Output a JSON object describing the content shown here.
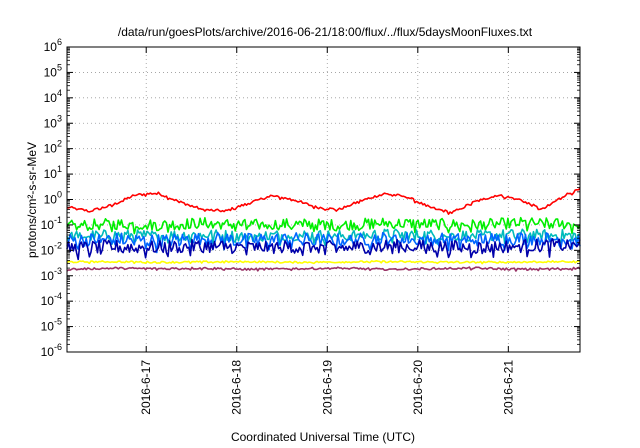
{
  "chart_data": {
    "type": "line",
    "title": "/data/run/goesPlots/archive/2016-06-21/18:00/flux/../flux/5daysMoonFluxes.txt",
    "xlabel": "Coordinated Universal Time (UTC)",
    "ylabel": "protons/cm²-s-sr-MeV",
    "y_scale": "log",
    "ylim": [
      1e-06,
      1000000.0
    ],
    "xlim": [
      "2016-06-16 03:00",
      "2016-06-21 19:00"
    ],
    "grid": true,
    "legend": "none",
    "y_ticks": [
      {
        "value": 1e-06,
        "base": "10",
        "exp": "-6"
      },
      {
        "value": 1e-05,
        "base": "10",
        "exp": "-5"
      },
      {
        "value": 0.0001,
        "base": "10",
        "exp": "-4"
      },
      {
        "value": 0.001,
        "base": "10",
        "exp": "-3"
      },
      {
        "value": 0.01,
        "base": "10",
        "exp": "-2"
      },
      {
        "value": 0.1,
        "base": "10",
        "exp": "-1"
      },
      {
        "value": 1,
        "base": "10",
        "exp": "0"
      },
      {
        "value": 10.0,
        "base": "10",
        "exp": "1"
      },
      {
        "value": 100.0,
        "base": "10",
        "exp": "2"
      },
      {
        "value": 1000.0,
        "base": "10",
        "exp": "3"
      },
      {
        "value": 10000.0,
        "base": "10",
        "exp": "4"
      },
      {
        "value": 100000.0,
        "base": "10",
        "exp": "5"
      },
      {
        "value": 1000000.0,
        "base": "10",
        "exp": "6"
      }
    ],
    "x_ticks": [
      {
        "date": "2016-06-17",
        "label": "2016-6-17"
      },
      {
        "date": "2016-06-18",
        "label": "2016-6-18"
      },
      {
        "date": "2016-06-19",
        "label": "2016-6-19"
      },
      {
        "date": "2016-06-20",
        "label": "2016-6-20"
      },
      {
        "date": "2016-06-21",
        "label": "2016-6-21"
      }
    ],
    "series": [
      {
        "color": "#ff0000",
        "x": [
          "2016-06-16 03:00",
          "2016-06-16 09:00",
          "2016-06-16 15:00",
          "2016-06-16 21:00",
          "2016-06-17 03:00",
          "2016-06-17 09:00",
          "2016-06-17 15:00",
          "2016-06-17 21:00",
          "2016-06-18 03:00",
          "2016-06-18 09:00",
          "2016-06-18 15:00",
          "2016-06-18 21:00",
          "2016-06-19 03:00",
          "2016-06-19 09:00",
          "2016-06-19 15:00",
          "2016-06-19 21:00",
          "2016-06-20 03:00",
          "2016-06-20 09:00",
          "2016-06-20 15:00",
          "2016-06-20 21:00",
          "2016-06-21 03:00",
          "2016-06-21 09:00",
          "2016-06-21 15:00",
          "2016-06-21 19:00"
        ],
        "values": [
          0.5,
          0.35,
          0.6,
          1.5,
          1.8,
          0.8,
          0.4,
          0.35,
          0.7,
          1.4,
          1.0,
          0.5,
          0.4,
          0.9,
          1.7,
          1.3,
          0.5,
          0.3,
          0.8,
          1.5,
          1.0,
          0.4,
          1.5,
          2.5
        ]
      },
      {
        "color": "#00ee00",
        "x": [
          "2016-06-16 03:00",
          "2016-06-16 15:00",
          "2016-06-17 03:00",
          "2016-06-17 15:00",
          "2016-06-18 03:00",
          "2016-06-18 15:00",
          "2016-06-19 03:00",
          "2016-06-19 15:00",
          "2016-06-20 03:00",
          "2016-06-20 15:00",
          "2016-06-21 03:00",
          "2016-06-21 15:00",
          "2016-06-21 19:00"
        ],
        "values": [
          0.09,
          0.11,
          0.1,
          0.12,
          0.1,
          0.11,
          0.1,
          0.12,
          0.11,
          0.1,
          0.12,
          0.11,
          0.1
        ]
      },
      {
        "color": "#00bbbb",
        "x": [
          "2016-06-16 03:00",
          "2016-06-16 15:00",
          "2016-06-17 03:00",
          "2016-06-17 15:00",
          "2016-06-18 03:00",
          "2016-06-18 15:00",
          "2016-06-19 03:00",
          "2016-06-19 15:00",
          "2016-06-20 03:00",
          "2016-06-20 15:00",
          "2016-06-21 03:00",
          "2016-06-21 15:00",
          "2016-06-21 19:00"
        ],
        "values": [
          0.035,
          0.04,
          0.038,
          0.042,
          0.036,
          0.04,
          0.038,
          0.043,
          0.04,
          0.038,
          0.042,
          0.04,
          0.036
        ]
      },
      {
        "color": "#0066ff",
        "x": [
          "2016-06-16 03:00",
          "2016-06-16 15:00",
          "2016-06-17 03:00",
          "2016-06-17 15:00",
          "2016-06-18 03:00",
          "2016-06-18 15:00",
          "2016-06-19 03:00",
          "2016-06-19 15:00",
          "2016-06-20 03:00",
          "2016-06-20 15:00",
          "2016-06-21 03:00",
          "2016-06-21 15:00",
          "2016-06-21 19:00"
        ],
        "values": [
          0.025,
          0.028,
          0.024,
          0.03,
          0.026,
          0.028,
          0.025,
          0.03,
          0.027,
          0.026,
          0.03,
          0.028,
          0.025
        ]
      },
      {
        "color": "#0000aa",
        "x": [
          "2016-06-16 03:00",
          "2016-06-16 15:00",
          "2016-06-17 03:00",
          "2016-06-17 15:00",
          "2016-06-18 03:00",
          "2016-06-18 15:00",
          "2016-06-19 03:00",
          "2016-06-19 15:00",
          "2016-06-20 03:00",
          "2016-06-20 15:00",
          "2016-06-21 03:00",
          "2016-06-21 15:00",
          "2016-06-21 19:00"
        ],
        "values": [
          0.012,
          0.014,
          0.013,
          0.015,
          0.013,
          0.014,
          0.013,
          0.015,
          0.014,
          0.013,
          0.015,
          0.016,
          0.018
        ]
      },
      {
        "color": "#ffff00",
        "x": [
          "2016-06-16 03:00",
          "2016-06-16 15:00",
          "2016-06-17 03:00",
          "2016-06-17 15:00",
          "2016-06-18 03:00",
          "2016-06-18 15:00",
          "2016-06-19 03:00",
          "2016-06-19 15:00",
          "2016-06-20 03:00",
          "2016-06-20 15:00",
          "2016-06-21 03:00",
          "2016-06-21 15:00",
          "2016-06-21 19:00"
        ],
        "values": [
          0.0035,
          0.0036,
          0.0034,
          0.0035,
          0.0036,
          0.0034,
          0.0035,
          0.0036,
          0.0035,
          0.0034,
          0.0035,
          0.0036,
          0.0035
        ]
      },
      {
        "color": "#993366",
        "x": [
          "2016-06-16 03:00",
          "2016-06-16 15:00",
          "2016-06-17 03:00",
          "2016-06-17 15:00",
          "2016-06-18 03:00",
          "2016-06-18 15:00",
          "2016-06-19 03:00",
          "2016-06-19 15:00",
          "2016-06-20 03:00",
          "2016-06-20 15:00",
          "2016-06-21 03:00",
          "2016-06-21 15:00",
          "2016-06-21 19:00"
        ],
        "values": [
          0.0018,
          0.002,
          0.0019,
          0.002,
          0.0018,
          0.0019,
          0.002,
          0.0018,
          0.0019,
          0.002,
          0.0018,
          0.0019,
          0.002
        ]
      }
    ]
  }
}
